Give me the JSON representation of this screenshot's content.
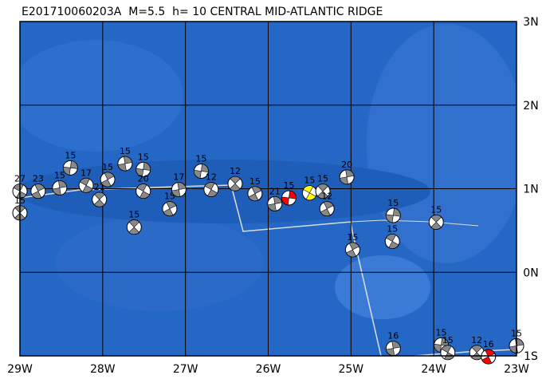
{
  "title": "E201710060203A  M=5.5  h= 10 CENTRAL MID-ATLANTIC RIDGE",
  "lon_ticks": [
    {
      "value": -29,
      "label": "29W"
    },
    {
      "value": -28,
      "label": "28W"
    },
    {
      "value": -27,
      "label": "27W"
    },
    {
      "value": -26,
      "label": "26W"
    },
    {
      "value": -25,
      "label": "25W"
    },
    {
      "value": -24,
      "label": "24W"
    },
    {
      "value": -23,
      "label": "23W"
    }
  ],
  "lat_ticks": [
    {
      "value": 3,
      "label": "3N"
    },
    {
      "value": 2,
      "label": "2N"
    },
    {
      "value": 1,
      "label": "1N"
    },
    {
      "value": 0,
      "label": "0N"
    },
    {
      "value": -1,
      "label": "1S"
    }
  ],
  "lon_range": [
    -29,
    -23
  ],
  "lat_range": [
    -1,
    3
  ],
  "events": [
    {
      "lon": -29.0,
      "lat": 0.97,
      "label": "27",
      "color": "#888888"
    },
    {
      "lon": -29.0,
      "lat": 0.71,
      "label": "15",
      "color": "#888888"
    },
    {
      "lon": -28.78,
      "lat": 0.97,
      "label": "23",
      "color": "#888888"
    },
    {
      "lon": -28.52,
      "lat": 1.01,
      "label": "15",
      "color": "#888888"
    },
    {
      "lon": -28.39,
      "lat": 1.25,
      "label": "15",
      "color": "#888888"
    },
    {
      "lon": -28.2,
      "lat": 1.04,
      "label": "17",
      "color": "#888888"
    },
    {
      "lon": -28.04,
      "lat": 0.87,
      "label": "21",
      "color": "#888888"
    },
    {
      "lon": -27.94,
      "lat": 1.11,
      "label": "15",
      "color": "#888888"
    },
    {
      "lon": -27.73,
      "lat": 1.3,
      "label": "15",
      "color": "#888888"
    },
    {
      "lon": -27.51,
      "lat": 1.23,
      "label": "15",
      "color": "#888888"
    },
    {
      "lon": -27.51,
      "lat": 0.97,
      "label": "20",
      "color": "#888888"
    },
    {
      "lon": -27.62,
      "lat": 0.54,
      "label": "15",
      "color": "#888888"
    },
    {
      "lon": -27.19,
      "lat": 0.76,
      "label": "15",
      "color": "#888888"
    },
    {
      "lon": -27.08,
      "lat": 0.99,
      "label": "17",
      "color": "#888888"
    },
    {
      "lon": -26.81,
      "lat": 1.21,
      "label": "15",
      "color": "#888888"
    },
    {
      "lon": -26.69,
      "lat": 0.99,
      "label": "12",
      "color": "#888888"
    },
    {
      "lon": -26.4,
      "lat": 1.06,
      "label": "12",
      "color": "#888888"
    },
    {
      "lon": -26.16,
      "lat": 0.94,
      "label": "15",
      "color": "#888888"
    },
    {
      "lon": -25.92,
      "lat": 0.82,
      "label": "21",
      "color": "#888888"
    },
    {
      "lon": -25.75,
      "lat": 0.89,
      "label": "15",
      "color": "#ff0000"
    },
    {
      "lon": -25.5,
      "lat": 0.95,
      "label": "15",
      "color": "#ffff00"
    },
    {
      "lon": -25.34,
      "lat": 0.97,
      "label": "15",
      "color": "#888888"
    },
    {
      "lon": -25.29,
      "lat": 0.76,
      "label": "12",
      "color": "#888888"
    },
    {
      "lon": -25.05,
      "lat": 1.14,
      "label": "20",
      "color": "#888888"
    },
    {
      "lon": -24.49,
      "lat": 0.68,
      "label": "15",
      "color": "#888888"
    },
    {
      "lon": -24.5,
      "lat": 0.37,
      "label": "15",
      "color": "#888888"
    },
    {
      "lon": -23.97,
      "lat": 0.6,
      "label": "15",
      "color": "#888888"
    },
    {
      "lon": -24.98,
      "lat": 0.27,
      "label": "15",
      "color": "#888888"
    },
    {
      "lon": -24.49,
      "lat": -0.91,
      "label": "16",
      "color": "#888888"
    },
    {
      "lon": -23.91,
      "lat": -0.87,
      "label": "15",
      "color": "#888888"
    },
    {
      "lon": -23.83,
      "lat": -0.96,
      "label": "15",
      "color": "#888888"
    },
    {
      "lon": -23.48,
      "lat": -0.96,
      "label": "12",
      "color": "#888888"
    },
    {
      "lon": -23.34,
      "lat": -1.01,
      "label": "16",
      "color": "#ff0000"
    },
    {
      "lon": -23.0,
      "lat": -0.88,
      "label": "15",
      "color": "#888888"
    }
  ]
}
